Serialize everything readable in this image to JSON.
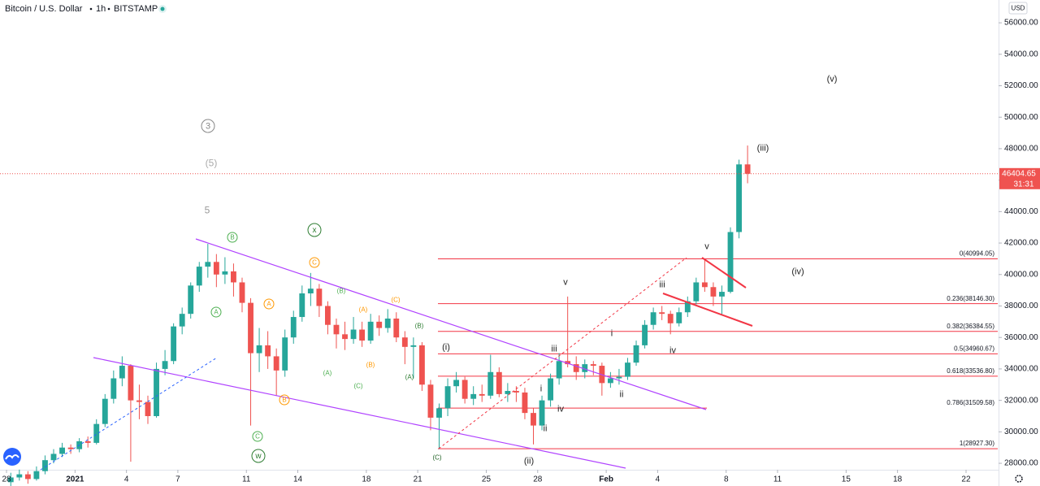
{
  "chart_data": {
    "type": "candlestick",
    "title": "Bitcoin / U.S. Dollar",
    "interval": "1h",
    "exchange": "BITSTAMP",
    "currency": "USD",
    "up_color": "#26a69a",
    "down_color": "#ef5350",
    "fib_color": "#f23645",
    "grid": false,
    "xlim": [
      -0.38,
      57.85
    ],
    "xticks": [
      {
        "value": 0,
        "label": "28"
      },
      {
        "value": 4,
        "label": "2021"
      },
      {
        "value": 7,
        "label": "4"
      },
      {
        "value": 10,
        "label": "7"
      },
      {
        "value": 14,
        "label": "11"
      },
      {
        "value": 17,
        "label": "14"
      },
      {
        "value": 21,
        "label": "18"
      },
      {
        "value": 24,
        "label": "21"
      },
      {
        "value": 28,
        "label": "25"
      },
      {
        "value": 31,
        "label": "28"
      },
      {
        "value": 35,
        "label": "Feb"
      },
      {
        "value": 38,
        "label": "4"
      },
      {
        "value": 42,
        "label": "8"
      },
      {
        "value": 45,
        "label": "11"
      },
      {
        "value": 49,
        "label": "15"
      },
      {
        "value": 52,
        "label": "18"
      },
      {
        "value": 56,
        "label": "22"
      }
    ],
    "ylim": [
      27590,
      57450
    ],
    "yticks": [
      {
        "value": 28000,
        "label": "28000.00"
      },
      {
        "value": 30000,
        "label": "30000.00"
      },
      {
        "value": 32000,
        "label": "32000.00"
      },
      {
        "value": 34000,
        "label": "34000.00"
      },
      {
        "value": 36000,
        "label": "36000.00"
      },
      {
        "value": 38000,
        "label": "38000.00"
      },
      {
        "value": 40000,
        "label": "40000.00"
      },
      {
        "value": 42000,
        "label": "42000.00"
      },
      {
        "value": 44000,
        "label": "44000.00"
      },
      {
        "value": 46000,
        "label": "46000.00"
      },
      {
        "value": 48000,
        "label": "48000.00"
      },
      {
        "value": 50000,
        "label": "50000.00"
      },
      {
        "value": 52000,
        "label": "52000.00"
      },
      {
        "value": 54000,
        "label": "54000.00"
      },
      {
        "value": 56000,
        "label": "56000.00"
      }
    ],
    "x": [
      0.25,
      0.75,
      1.25,
      1.75,
      2.25,
      2.75,
      3.25,
      3.75,
      4.25,
      4.75,
      5.25,
      5.75,
      6.25,
      6.75,
      7.25,
      7.75,
      8.25,
      8.75,
      9.25,
      9.75,
      10.25,
      10.75,
      11.25,
      11.75,
      12.25,
      12.75,
      13.25,
      13.75,
      14.25,
      14.75,
      15.25,
      15.75,
      16.25,
      16.75,
      17.25,
      17.75,
      18.25,
      18.75,
      19.25,
      19.75,
      20.25,
      20.75,
      21.25,
      21.75,
      22.25,
      22.75,
      23.25,
      23.75,
      24.25,
      24.75,
      25.25,
      25.75,
      26.25,
      26.75,
      27.25,
      27.75,
      28.25,
      28.75,
      29.25,
      29.75,
      30.25,
      30.75,
      31.25,
      31.75,
      32.25,
      32.75,
      33.25,
      33.75,
      34.25,
      34.75,
      35.25,
      35.75,
      36.25,
      36.75,
      37.25,
      37.75,
      38.25,
      38.75,
      39.25,
      39.75,
      40.25,
      40.75,
      41.25,
      41.75,
      42.25,
      42.75,
      43.25
    ],
    "ohlc": [
      [
        26800,
        27400,
        26500,
        27100
      ],
      [
        27100,
        27600,
        26900,
        27300
      ],
      [
        27300,
        27500,
        26700,
        27000
      ],
      [
        27000,
        27800,
        26900,
        27500
      ],
      [
        27500,
        28500,
        27300,
        28200
      ],
      [
        28200,
        28900,
        28000,
        28600
      ],
      [
        28600,
        29300,
        28400,
        29000
      ],
      [
        29000,
        29200,
        28600,
        28900
      ],
      [
        28900,
        29600,
        28700,
        29400
      ],
      [
        29400,
        29700,
        29000,
        29300
      ],
      [
        29300,
        30800,
        29200,
        30500
      ],
      [
        30500,
        32400,
        30300,
        32100
      ],
      [
        32100,
        33900,
        31800,
        33400
      ],
      [
        33400,
        34800,
        32900,
        34200
      ],
      [
        34200,
        34300,
        28100,
        32000
      ],
      [
        32000,
        33000,
        30800,
        31900
      ],
      [
        31900,
        32300,
        30500,
        31000
      ],
      [
        31000,
        34400,
        30900,
        34000
      ],
      [
        34000,
        35200,
        33600,
        34500
      ],
      [
        34500,
        36900,
        34300,
        36700
      ],
      [
        36700,
        37900,
        36200,
        37500
      ],
      [
        37500,
        39500,
        37200,
        39300
      ],
      [
        39300,
        40800,
        38900,
        40500
      ],
      [
        40500,
        41950,
        39800,
        40800
      ],
      [
        40800,
        41300,
        39200,
        40000
      ],
      [
        40000,
        41100,
        39400,
        40200
      ],
      [
        40200,
        40700,
        38600,
        39500
      ],
      [
        39500,
        39800,
        37600,
        38200
      ],
      [
        38200,
        38500,
        30400,
        35000
      ],
      [
        35000,
        36600,
        33800,
        35500
      ],
      [
        35500,
        36400,
        34000,
        34800
      ],
      [
        34800,
        35300,
        32300,
        33900
      ],
      [
        33900,
        36500,
        33500,
        36000
      ],
      [
        36000,
        37700,
        35600,
        37300
      ],
      [
        37300,
        39300,
        37000,
        38800
      ],
      [
        38800,
        40100,
        38000,
        39100
      ],
      [
        39100,
        39400,
        37300,
        38000
      ],
      [
        38000,
        38300,
        36200,
        36800
      ],
      [
        36800,
        37200,
        35300,
        36200
      ],
      [
        36200,
        37000,
        35200,
        35900
      ],
      [
        35900,
        37300,
        35600,
        36500
      ],
      [
        36500,
        37000,
        35400,
        35800
      ],
      [
        35800,
        37500,
        35600,
        37000
      ],
      [
        37000,
        37400,
        36100,
        36600
      ],
      [
        36600,
        37800,
        36300,
        37200
      ],
      [
        37200,
        37600,
        35700,
        36000
      ],
      [
        36000,
        36400,
        34300,
        35400
      ],
      [
        35400,
        36000,
        33400,
        35500
      ],
      [
        35500,
        35700,
        32600,
        33000
      ],
      [
        33000,
        33300,
        30100,
        30900
      ],
      [
        30900,
        31800,
        28900,
        31500
      ],
      [
        31500,
        33400,
        31000,
        32900
      ],
      [
        32900,
        33800,
        32500,
        33300
      ],
      [
        33300,
        33500,
        31800,
        32100
      ],
      [
        32100,
        32900,
        31700,
        32400
      ],
      [
        32400,
        33000,
        31900,
        32300
      ],
      [
        32300,
        34900,
        32100,
        33800
      ],
      [
        33800,
        34100,
        32200,
        32400
      ],
      [
        32400,
        33100,
        31900,
        32600
      ],
      [
        32600,
        32900,
        31900,
        32500
      ],
      [
        32500,
        32800,
        30800,
        31200
      ],
      [
        31200,
        31500,
        29200,
        30400
      ],
      [
        30400,
        32300,
        30100,
        32000
      ],
      [
        32000,
        33700,
        31600,
        33400
      ],
      [
        33400,
        35000,
        33000,
        34500
      ],
      [
        34500,
        38600,
        34100,
        34300
      ],
      [
        34300,
        34800,
        33300,
        33800
      ],
      [
        33800,
        34600,
        33400,
        34300
      ],
      [
        34300,
        34500,
        33600,
        34200
      ],
      [
        34200,
        34400,
        32300,
        33100
      ],
      [
        33100,
        33800,
        32800,
        33400
      ],
      [
        33400,
        34000,
        33000,
        33500
      ],
      [
        33500,
        34700,
        33300,
        34400
      ],
      [
        34400,
        35800,
        34200,
        35500
      ],
      [
        35500,
        37100,
        35300,
        36800
      ],
      [
        36800,
        37900,
        36500,
        37600
      ],
      [
        37600,
        38000,
        37100,
        37500
      ],
      [
        37500,
        37700,
        36200,
        36900
      ],
      [
        36900,
        37900,
        36700,
        37600
      ],
      [
        37600,
        38600,
        37300,
        38300
      ],
      [
        38300,
        39800,
        38100,
        39500
      ],
      [
        39500,
        40994,
        38900,
        39200
      ],
      [
        39200,
        39500,
        38000,
        38600
      ],
      [
        38600,
        39300,
        37400,
        38900
      ],
      [
        38900,
        43000,
        38800,
        42700
      ],
      [
        42700,
        47300,
        42300,
        47000
      ],
      [
        47000,
        48200,
        45800,
        46404.65
      ]
    ],
    "last_price": 46404.65,
    "countdown": "31:31",
    "fib_levels": [
      {
        "value": 40994.05,
        "label": "0(40994.05)"
      },
      {
        "value": 38146.3,
        "label": "0.236(38146.30)"
      },
      {
        "value": 36384.55,
        "label": "0.382(36384.55)"
      },
      {
        "value": 34960.67,
        "label": "0.5(34960.67)"
      },
      {
        "value": 33536.8,
        "label": "0.618(33536.80)"
      },
      {
        "value": 31509.58,
        "label": "0.786(31509.58)"
      },
      {
        "value": 28927.3,
        "label": "1(28927.30)"
      }
    ],
    "annotations": [
      "3",
      "(5)",
      "5",
      "B",
      "A",
      "x",
      "C",
      "A",
      "B",
      "C",
      "w",
      "(B)",
      "(A)",
      "(C)",
      "(B)",
      "(B)",
      "(A)",
      "(C)",
      "(A)",
      "(C)",
      "(i)",
      "(ii)",
      "iii",
      "iv",
      "i",
      "ii",
      "v",
      "i",
      "ii",
      "iii",
      "iv",
      "v",
      "(iii)",
      "(iv)",
      "(v)"
    ]
  }
}
